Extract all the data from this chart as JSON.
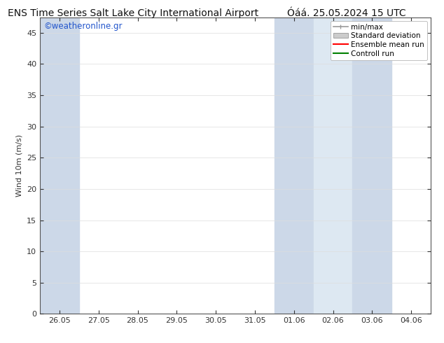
{
  "title_left": "ENS Time Series Salt Lake City International Airport",
  "title_right": "Óáá. 25.05.2024 15 UTC",
  "ylabel": "Wind 10m (m/s)",
  "watermark": "©weatheronline.gr",
  "ylim": [
    0,
    47.5
  ],
  "yticks": [
    0,
    5,
    10,
    15,
    20,
    25,
    30,
    35,
    40,
    45
  ],
  "x_labels": [
    "26.05",
    "27.05",
    "28.05",
    "29.05",
    "30.05",
    "31.05",
    "01.06",
    "02.06",
    "03.06",
    "04.06"
  ],
  "band_color_dark": "#cce0f0",
  "band_color_light": "#ddeefa",
  "bg_color": "#ffffff",
  "legend_labels": [
    "min/max",
    "Standard deviation",
    "Ensemble mean run",
    "Controll run"
  ],
  "minmax_color": "#999999",
  "std_color": "#cccccc",
  "ens_color": "#ff0000",
  "ctrl_color": "#008000",
  "grid_color": "#dddddd",
  "watermark_color": "#2255cc",
  "title_color": "#111111",
  "axis_color": "#333333",
  "title_fontsize": 10,
  "axis_fontsize": 8,
  "shaded_bands": [
    0,
    1,
    6,
    7,
    8,
    9
  ]
}
